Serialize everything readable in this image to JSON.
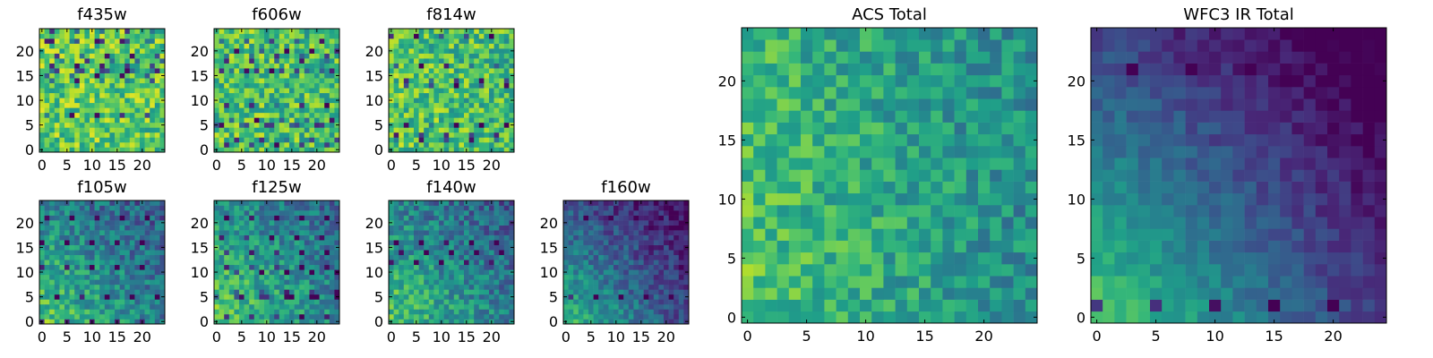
{
  "figure": {
    "title": ""
  },
  "chart_data": [
    {
      "type": "heatmap",
      "title": "f435w",
      "colormap": "viridis",
      "grid": false,
      "rows": 25,
      "cols": 25,
      "seed": 11,
      "x_ticks": [
        0,
        5,
        10,
        15,
        20
      ],
      "y_ticks": [
        0,
        5,
        10,
        15,
        20
      ],
      "xlim": [
        -0.5,
        24.5
      ],
      "ylim": [
        -0.5,
        24.5
      ],
      "pattern": {
        "base": 0.74,
        "spread": 0.22,
        "gradient": 0.02,
        "dark_spots": 0.06,
        "corner": "none"
      }
    },
    {
      "type": "heatmap",
      "title": "f606w",
      "colormap": "viridis",
      "grid": false,
      "rows": 25,
      "cols": 25,
      "seed": 23,
      "x_ticks": [
        0,
        5,
        10,
        15,
        20
      ],
      "y_ticks": [
        0,
        5,
        10,
        15,
        20
      ],
      "xlim": [
        -0.5,
        24.5
      ],
      "ylim": [
        -0.5,
        24.5
      ],
      "pattern": {
        "base": 0.7,
        "spread": 0.22,
        "gradient": 0.04,
        "dark_spots": 0.07,
        "corner": "none"
      }
    },
    {
      "type": "heatmap",
      "title": "f814w",
      "colormap": "viridis",
      "grid": false,
      "rows": 25,
      "cols": 25,
      "seed": 37,
      "x_ticks": [
        0,
        5,
        10,
        15,
        20
      ],
      "y_ticks": [
        0,
        5,
        10,
        15,
        20
      ],
      "xlim": [
        -0.5,
        24.5
      ],
      "ylim": [
        -0.5,
        24.5
      ],
      "pattern": {
        "base": 0.7,
        "spread": 0.22,
        "gradient": 0.05,
        "dark_spots": 0.07,
        "corner": "none"
      }
    },
    {
      "type": "heatmap",
      "title": "f105w",
      "colormap": "viridis",
      "grid": false,
      "rows": 25,
      "cols": 25,
      "seed": 41,
      "x_ticks": [
        0,
        5,
        10,
        15,
        20
      ],
      "y_ticks": [
        0,
        5,
        10,
        15,
        20
      ],
      "xlim": [
        -0.5,
        24.5
      ],
      "ylim": [
        -0.5,
        24.5
      ],
      "pattern": {
        "base": 0.58,
        "spread": 0.18,
        "gradient": 0.3,
        "dark_spots": 0.04,
        "corner": "top-right"
      }
    },
    {
      "type": "heatmap",
      "title": "f125w",
      "colormap": "viridis",
      "grid": false,
      "rows": 25,
      "cols": 25,
      "seed": 53,
      "x_ticks": [
        0,
        5,
        10,
        15,
        20
      ],
      "y_ticks": [
        0,
        5,
        10,
        15,
        20
      ],
      "xlim": [
        -0.5,
        24.5
      ],
      "ylim": [
        -0.5,
        24.5
      ],
      "pattern": {
        "base": 0.62,
        "spread": 0.18,
        "gradient": 0.28,
        "dark_spots": 0.04,
        "corner": "top-right"
      }
    },
    {
      "type": "heatmap",
      "title": "f140w",
      "colormap": "viridis",
      "grid": false,
      "rows": 25,
      "cols": 25,
      "seed": 67,
      "x_ticks": [
        0,
        5,
        10,
        15,
        20
      ],
      "y_ticks": [
        0,
        5,
        10,
        15,
        20
      ],
      "xlim": [
        -0.5,
        24.5
      ],
      "ylim": [
        -0.5,
        24.5
      ],
      "pattern": {
        "base": 0.58,
        "spread": 0.18,
        "gradient": 0.3,
        "dark_spots": 0.04,
        "corner": "top-right"
      }
    },
    {
      "type": "heatmap",
      "title": "f160w",
      "colormap": "viridis",
      "grid": false,
      "rows": 25,
      "cols": 25,
      "seed": 79,
      "x_ticks": [
        0,
        5,
        10,
        15,
        20
      ],
      "y_ticks": [
        0,
        5,
        10,
        15,
        20
      ],
      "xlim": [
        -0.5,
        24.5
      ],
      "ylim": [
        -0.5,
        24.5
      ],
      "pattern": {
        "base": 0.46,
        "spread": 0.14,
        "gradient": 0.45,
        "dark_spots": 0.03,
        "corner": "top-right"
      }
    },
    {
      "type": "heatmap",
      "title": "ACS Total",
      "colormap": "viridis",
      "grid": false,
      "rows": 25,
      "cols": 25,
      "seed": 97,
      "x_ticks": [
        0,
        5,
        10,
        15,
        20
      ],
      "y_ticks": [
        0,
        5,
        10,
        15,
        20
      ],
      "xlim": [
        -0.5,
        24.5
      ],
      "ylim": [
        -0.5,
        24.5
      ],
      "pattern": {
        "base": 0.66,
        "spread": 0.16,
        "gradient": 0.18,
        "dark_spots": 0.03,
        "corner": "right"
      }
    },
    {
      "type": "heatmap",
      "title": "WFC3 IR Total",
      "colormap": "viridis",
      "grid": false,
      "rows": 25,
      "cols": 25,
      "seed": 113,
      "x_ticks": [
        0,
        5,
        10,
        15,
        20
      ],
      "y_ticks": [
        0,
        5,
        10,
        15,
        20
      ],
      "xlim": [
        -0.5,
        24.5
      ],
      "ylim": [
        -0.5,
        24.5
      ],
      "pattern": {
        "base": 0.46,
        "spread": 0.08,
        "gradient": 0.55,
        "dark_spots": 0.02,
        "corner": "top-right"
      }
    }
  ],
  "colors": {
    "viridis_stops": [
      "#440154",
      "#482878",
      "#3e4989",
      "#31688e",
      "#26828e",
      "#1f9e89",
      "#35b779",
      "#6ece58",
      "#b5de2b",
      "#fde725"
    ],
    "axis": "#000000",
    "background": "#ffffff"
  }
}
